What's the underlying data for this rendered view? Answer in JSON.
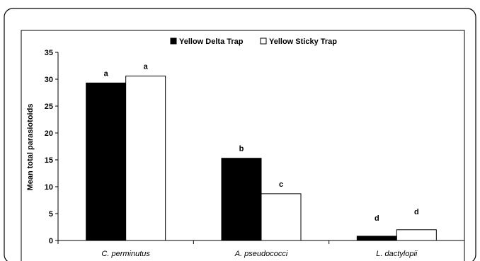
{
  "chart_data": {
    "type": "bar",
    "categories": [
      "C. perminutus",
      "A. pseudococci",
      "L. dactylopii"
    ],
    "series": [
      {
        "name": "Yellow Delta Trap",
        "color": "#000000",
        "values": [
          29.3,
          15.3,
          0.8
        ],
        "labels": [
          "a",
          "b",
          "d"
        ]
      },
      {
        "name": "Yellow Sticky Trap",
        "color": "#ffffff",
        "values": [
          30.6,
          8.7,
          2.0
        ],
        "labels": [
          "a",
          "c",
          "d"
        ]
      }
    ],
    "ylabel": "Mean total parasiotoids",
    "xlabel": "",
    "ylim": [
      0,
      35
    ],
    "yticks": [
      0,
      5,
      10,
      15,
      20,
      25,
      30,
      35
    ],
    "grid": false,
    "legend_position": "top-center"
  }
}
